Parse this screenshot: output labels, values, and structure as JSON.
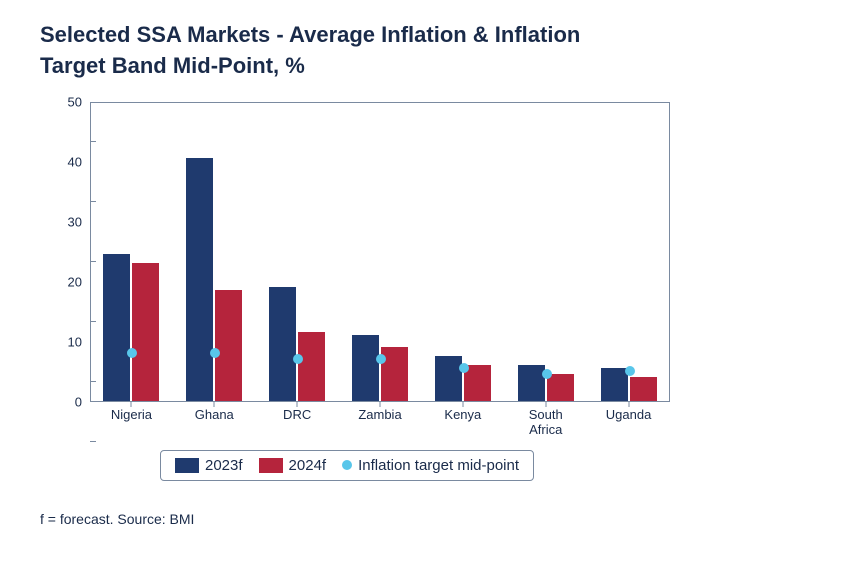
{
  "title": "Selected SSA Markets - Average Inflation & Inflation Target Band Mid-Point, %",
  "footnote": "f = forecast. Source: BMI",
  "chart": {
    "type": "grouped-bar-with-marker",
    "ylim": [
      0,
      50
    ],
    "yticks": [
      0,
      10,
      20,
      30,
      40,
      50
    ],
    "ylabel_fontsize": 13,
    "xlabel_fontsize": 13,
    "title_fontsize": 22,
    "background_color": "#ffffff",
    "border_color": "#7a8aa0",
    "text_color": "#1a2b4a",
    "bar_width": 0.35,
    "group_gap": 0.3,
    "categories": [
      "Nigeria",
      "Ghana",
      "DRC",
      "Zambia",
      "Kenya",
      "South\nAfrica",
      "Uganda"
    ],
    "series": [
      {
        "key": "s2023f",
        "label": "2023f",
        "type": "bar",
        "color": "#1f3a6e",
        "values": [
          24.5,
          40.5,
          19.0,
          11.0,
          7.5,
          6.0,
          5.5
        ]
      },
      {
        "key": "s2024f",
        "label": "2024f",
        "type": "bar",
        "color": "#b5243c",
        "values": [
          23.0,
          18.5,
          11.5,
          9.0,
          6.0,
          4.5,
          4.0
        ]
      },
      {
        "key": "target",
        "label": "Inflation target mid-point",
        "type": "marker",
        "color": "#58c6ea",
        "values": [
          8.0,
          8.0,
          7.0,
          7.0,
          5.5,
          4.5,
          5.0
        ]
      }
    ],
    "legend": {
      "items": [
        {
          "label": "2023f",
          "swatch": "#1f3a6e",
          "shape": "rect"
        },
        {
          "label": "2024f",
          "swatch": "#b5243c",
          "shape": "rect"
        },
        {
          "label": "Inflation target mid-point",
          "swatch": "#58c6ea",
          "shape": "dot"
        }
      ],
      "border_color": "#7a8aa0",
      "fontsize": 15
    }
  }
}
